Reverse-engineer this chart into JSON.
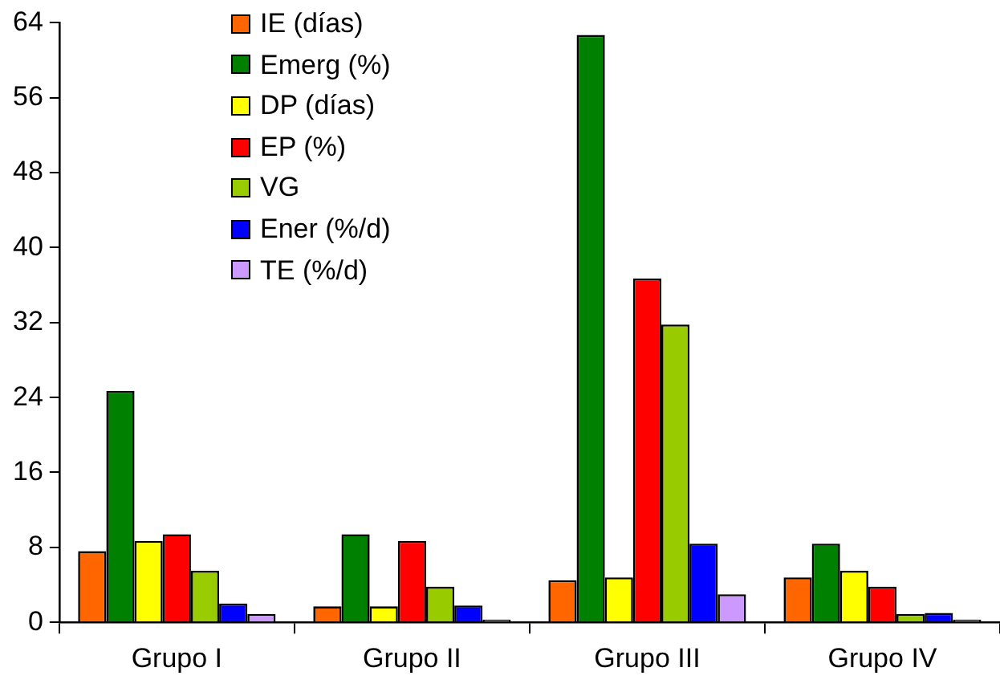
{
  "chart_data": {
    "type": "bar",
    "categories": [
      "Grupo I",
      "Grupo II",
      "Grupo III",
      "Grupo IV"
    ],
    "series": [
      {
        "name": "IE (días)",
        "color": "#ff6600",
        "values": [
          7.6,
          1.7,
          4.5,
          4.8
        ]
      },
      {
        "name": "Emerg (%)",
        "color": "#008000",
        "values": [
          24.7,
          9.4,
          62.7,
          8.4
        ]
      },
      {
        "name": "DP (días)",
        "color": "#ffff00",
        "values": [
          8.7,
          1.7,
          4.8,
          5.5
        ]
      },
      {
        "name": "EP (%)",
        "color": "#ff0000",
        "values": [
          9.4,
          8.7,
          36.7,
          3.8
        ]
      },
      {
        "name": "VG",
        "color": "#99cc00",
        "values": [
          5.5,
          3.8,
          31.8,
          0.9
        ]
      },
      {
        "name": "Ener (%/d)",
        "color": "#0000ff",
        "values": [
          2.0,
          1.8,
          8.4,
          1.0
        ]
      },
      {
        "name": "TE (%/d)",
        "color": "#cc99ff",
        "values": [
          0.9,
          0.3,
          3.0,
          0.3
        ]
      }
    ],
    "ylim": [
      0,
      64
    ],
    "yticks": [
      0,
      8,
      16,
      24,
      32,
      40,
      48,
      56,
      64
    ],
    "grid": false,
    "legend": "top left"
  }
}
